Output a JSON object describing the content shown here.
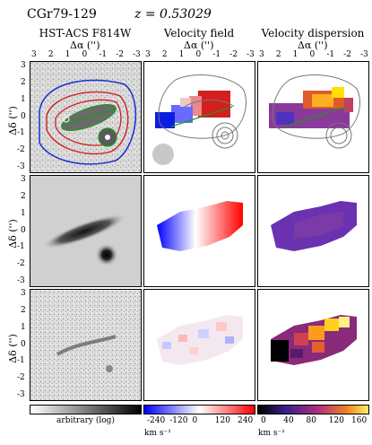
{
  "object": {
    "name": "CGr79-129",
    "redshift": "z = 0.53029"
  },
  "columns": [
    {
      "title": "HST-ACS F814W"
    },
    {
      "title": "Velocity field"
    },
    {
      "title": "Velocity dispersion"
    }
  ],
  "axes": {
    "x_label": "Δα ('')",
    "y_label": "Δδ ('')",
    "x_ticks": [
      "3",
      "2",
      "1",
      "0",
      "-1",
      "-2",
      "-3"
    ],
    "y_ticks": [
      "3",
      "2",
      "1",
      "0",
      "-1",
      "-2",
      "-3"
    ]
  },
  "colorbars": [
    {
      "label": "arbitrary (log)",
      "unit": "",
      "ticks": []
    },
    {
      "label": "",
      "unit": "km s⁻¹",
      "ticks": [
        "-240",
        "-120",
        "0",
        "120",
        "240"
      ]
    },
    {
      "label": "",
      "unit": "km s⁻¹",
      "ticks": [
        "0",
        "40",
        "80",
        "120",
        "160"
      ]
    }
  ],
  "colors": {
    "velocity_negative": "#0000ff",
    "velocity_positive": "#ff0000",
    "dispersion_low": "#000000",
    "dispersion_mid": "#8a3a9a",
    "dispersion_high": "#ffe000",
    "contour_blue": "#1a2fd0",
    "contour_red": "#d02020",
    "contour_green": "#1a9a1a"
  }
}
